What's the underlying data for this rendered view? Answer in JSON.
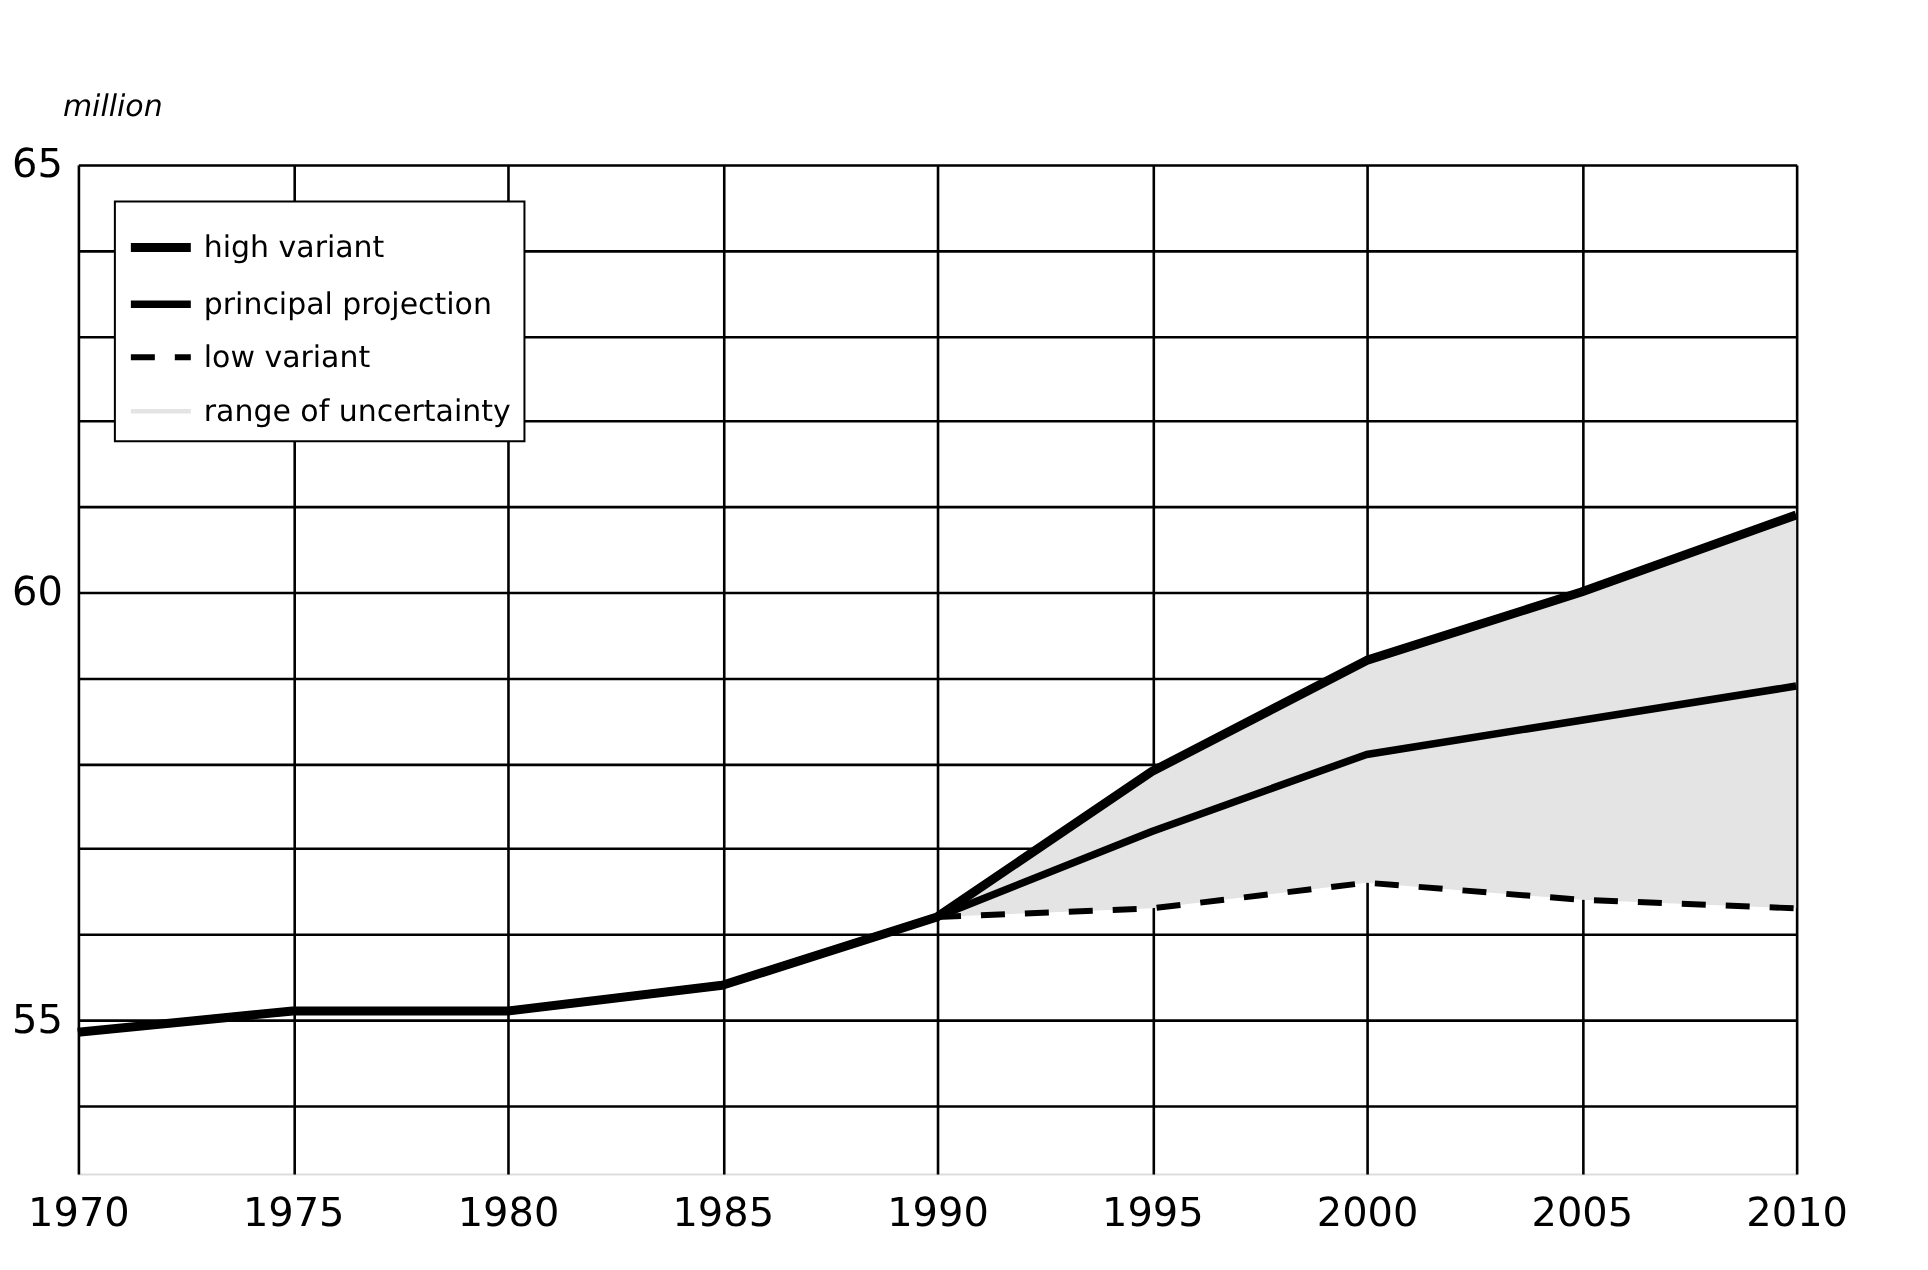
{
  "chart_data": {
    "type": "line",
    "ylabel": "million",
    "xlim": [
      1970,
      2010
    ],
    "xticks": [
      1970,
      1975,
      1980,
      1985,
      1990,
      1995,
      2000,
      2005,
      2010
    ],
    "ylim": [
      53.2,
      65
    ],
    "yticks": [
      {
        "value": 54,
        "label": null
      },
      55,
      {
        "value": 56,
        "label": null
      },
      {
        "value": 57,
        "label": null
      },
      {
        "value": 58,
        "label": null
      },
      {
        "value": 59,
        "label": null
      },
      60,
      {
        "value": 61,
        "label": null
      },
      {
        "value": 62,
        "label": null
      },
      {
        "value": 63,
        "label": null
      },
      {
        "value": 64,
        "label": null
      },
      65
    ],
    "grid": true,
    "legend": "top left",
    "annotations": [
      "range of uncertainty"
    ],
    "series": [
      {
        "name": "high variant",
        "color": "#000000",
        "line_style": "solid",
        "x": [
          1970,
          1975,
          1980,
          1985,
          1990,
          1995,
          2000,
          2005,
          2010
        ],
        "values": [
          54.85,
          55.1,
          55.1,
          55.4,
          56.2,
          57.9,
          59.2,
          60.0,
          60.9
        ]
      },
      {
        "name": "principal projection",
        "color": "#000000",
        "line_style": "solid",
        "x": [
          1970,
          1975,
          1980,
          1985,
          1990,
          1995,
          2000,
          2005,
          2010
        ],
        "values": [
          54.85,
          55.1,
          55.1,
          55.4,
          56.2,
          57.2,
          58.1,
          58.5,
          58.9
        ],
        "lower": [
          null,
          null,
          null,
          null,
          56.2,
          56.3,
          56.6,
          56.4,
          56.3
        ],
        "upper": [
          null,
          null,
          null,
          null,
          56.2,
          57.9,
          59.2,
          60.0,
          60.9
        ]
      },
      {
        "name": "low variant",
        "color": "#000000",
        "line_style": "dashed",
        "x": [
          1990,
          1995,
          2000,
          2005,
          2010
        ],
        "values": [
          56.2,
          56.3,
          56.6,
          56.4,
          56.3
        ]
      }
    ]
  }
}
